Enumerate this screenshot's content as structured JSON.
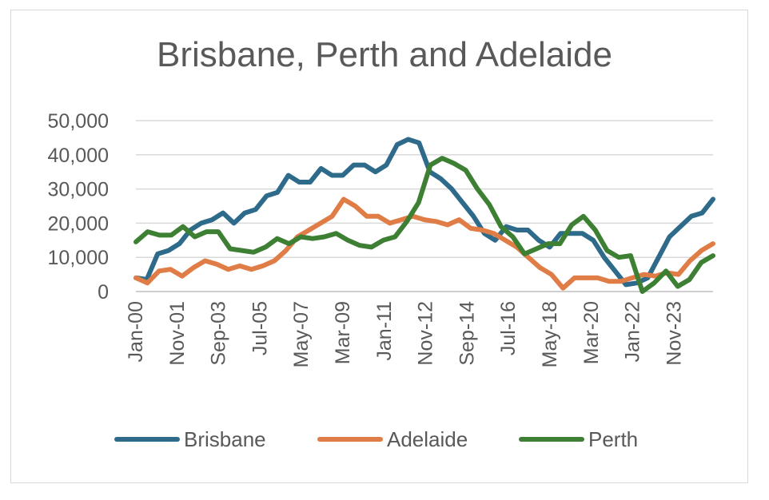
{
  "chart_data": {
    "type": "line",
    "title": "Brisbane, Perth and Adelaide",
    "xlabel": "",
    "ylabel": "",
    "ylim": [
      0,
      50000
    ],
    "y_ticks": [
      "0",
      "10,000",
      "20,000",
      "30,000",
      "40,000",
      "50,000"
    ],
    "x_tick_labels": [
      "Jan-00",
      "Nov-01",
      "Sep-03",
      "Jul-05",
      "May-07",
      "Mar-09",
      "Jan-11",
      "Nov-12",
      "Sep-14",
      "Jul-16",
      "May-18",
      "Mar-20",
      "Jan-22",
      "Nov-23"
    ],
    "x_start": "Jan-00",
    "x_step_months": 6,
    "grid": true,
    "legend": "bottom",
    "series": [
      {
        "name": "Brisbane",
        "color": "#2e6a8a",
        "values": [
          4000,
          3500,
          11000,
          12000,
          14000,
          18000,
          20000,
          21000,
          23000,
          20000,
          23000,
          24000,
          28000,
          29000,
          34000,
          32000,
          32000,
          36000,
          34000,
          34000,
          37000,
          37000,
          35000,
          37000,
          43000,
          44500,
          43500,
          35000,
          33000,
          30000,
          26000,
          22000,
          17000,
          15000,
          19000,
          18000,
          18000,
          15000,
          13000,
          17000,
          17000,
          17000,
          15000,
          10000,
          6000,
          2000,
          2500,
          4000,
          10000,
          16000,
          19000,
          22000,
          23000,
          27000
        ]
      },
      {
        "name": "Adelaide",
        "color": "#e07c45",
        "values": [
          4000,
          2500,
          6000,
          6500,
          4500,
          7000,
          9000,
          8000,
          6500,
          7500,
          6500,
          7500,
          9000,
          12000,
          16000,
          18000,
          20000,
          22000,
          27000,
          25000,
          22000,
          22000,
          20000,
          21000,
          22000,
          21000,
          20500,
          19500,
          21000,
          18500,
          18000,
          17000,
          15000,
          13000,
          10000,
          7000,
          5000,
          1000,
          4000,
          4000,
          4000,
          3000,
          3000,
          4000,
          5000,
          4500,
          5500,
          5000,
          9000,
          12000,
          14000
        ]
      },
      {
        "name": "Perth",
        "color": "#3d7f33",
        "values": [
          14500,
          17500,
          16500,
          16500,
          19000,
          16000,
          17500,
          17500,
          12500,
          12000,
          11500,
          13000,
          15500,
          14000,
          16000,
          15500,
          16000,
          17000,
          15000,
          13500,
          13000,
          15000,
          16000,
          20500,
          26000,
          37000,
          39000,
          37500,
          35500,
          30000,
          25500,
          19000,
          16000,
          11000,
          12500,
          14000,
          14000,
          19500,
          22000,
          18000,
          12000,
          10000,
          10500,
          0,
          2500,
          6000,
          1500,
          3500,
          8500,
          10500
        ]
      }
    ]
  }
}
